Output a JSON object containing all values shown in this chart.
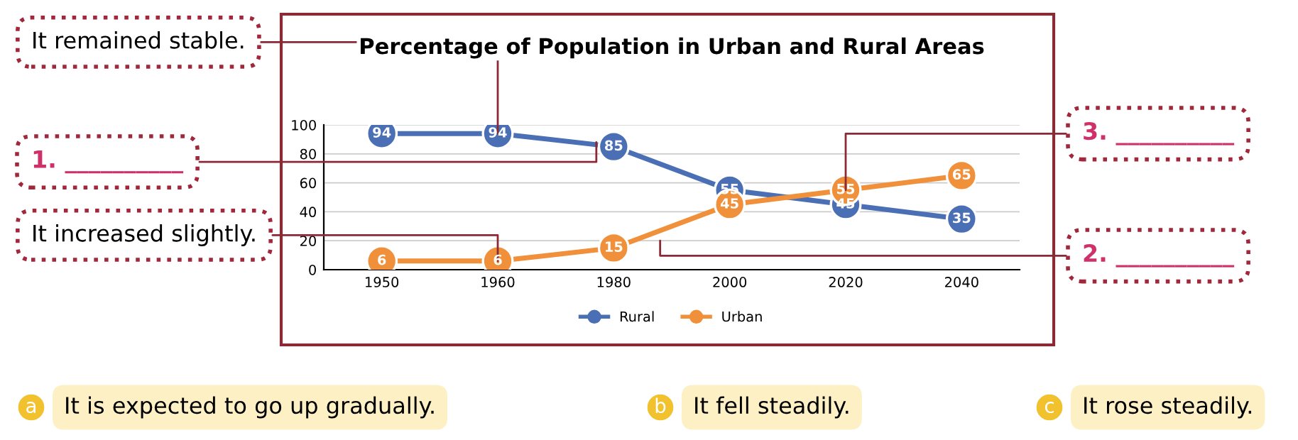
{
  "chart_data": {
    "type": "line",
    "title": "Percentage of Population in Urban and Rural Areas",
    "categories": [
      "1950",
      "1960",
      "1980",
      "2000",
      "2020",
      "2040"
    ],
    "series": [
      {
        "name": "Rural",
        "color": "#4a6fb5",
        "values": [
          94,
          94,
          85,
          55,
          45,
          35
        ]
      },
      {
        "name": "Urban",
        "color": "#f0903a",
        "values": [
          6,
          6,
          15,
          45,
          55,
          65
        ]
      }
    ],
    "ylim": [
      0,
      100
    ],
    "yticks": [
      0,
      20,
      40,
      60,
      80,
      100
    ],
    "grid": "y",
    "legend": "bottom",
    "marker": "circle",
    "line_style": "solid",
    "data_labels": true,
    "annotations": [
      {
        "text": "It remained stable.",
        "x": "1960",
        "y": 94
      },
      "1. __________",
      {
        "text": "It increased slightly.",
        "x": "1960",
        "y": 6
      },
      {
        "text": "3. __________",
        "x": "2020",
        "y": 55
      },
      "2. __________",
      "a",
      "It is expected to go up gradually.",
      "b",
      "It fell steadily.",
      "c",
      "It rose steadily."
    ]
  }
}
